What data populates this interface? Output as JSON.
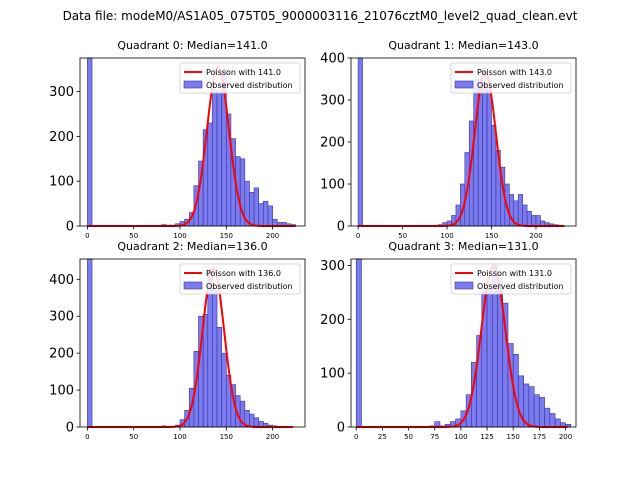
{
  "figure": {
    "suptitle": "Data file: modeM0/AS1A05_075T05_9000003116_21076cztM0_level2_quad_clean.evt"
  },
  "colors": {
    "hist_fill": "#7b7bf0",
    "hist_edge": "#3535a0",
    "poisson_line": "#ff0000",
    "axis": "#000000"
  },
  "chart_data": [
    {
      "type": "bar",
      "title": "Quadrant 0: Median=141.0",
      "xlim": [
        -8,
        235
      ],
      "ylim": [
        0,
        375
      ],
      "xticks": [
        0,
        50,
        100,
        150,
        200
      ],
      "yticks": [
        0,
        100,
        200,
        300
      ],
      "median": 141,
      "bin_width": 5,
      "legend": {
        "position": "upper right",
        "poisson_label": "Poisson with 141.0",
        "hist_label": "Observed distribution"
      },
      "bins": [
        {
          "x": 0,
          "v": 375
        },
        {
          "x": 80,
          "v": 3
        },
        {
          "x": 85,
          "v": 2
        },
        {
          "x": 90,
          "v": 2
        },
        {
          "x": 95,
          "v": 5
        },
        {
          "x": 100,
          "v": 10
        },
        {
          "x": 105,
          "v": 15
        },
        {
          "x": 110,
          "v": 30
        },
        {
          "x": 115,
          "v": 90
        },
        {
          "x": 120,
          "v": 145
        },
        {
          "x": 125,
          "v": 215
        },
        {
          "x": 130,
          "v": 230
        },
        {
          "x": 135,
          "v": 305
        },
        {
          "x": 140,
          "v": 300
        },
        {
          "x": 145,
          "v": 350
        },
        {
          "x": 150,
          "v": 250
        },
        {
          "x": 155,
          "v": 195
        },
        {
          "x": 160,
          "v": 155
        },
        {
          "x": 165,
          "v": 150
        },
        {
          "x": 170,
          "v": 100
        },
        {
          "x": 175,
          "v": 75
        },
        {
          "x": 180,
          "v": 85
        },
        {
          "x": 185,
          "v": 50
        },
        {
          "x": 190,
          "v": 55
        },
        {
          "x": 195,
          "v": 45
        },
        {
          "x": 200,
          "v": 15
        },
        {
          "x": 205,
          "v": 8
        },
        {
          "x": 210,
          "v": 8
        },
        {
          "x": 215,
          "v": 5
        },
        {
          "x": 220,
          "v": 3
        }
      ],
      "poisson_peak": 355,
      "poisson_range": [
        0,
        225
      ]
    },
    {
      "type": "bar",
      "title": "Quadrant 1: Median=143.0",
      "xlim": [
        -8,
        245
      ],
      "ylim": [
        0,
        400
      ],
      "xticks": [
        0,
        50,
        100,
        150,
        200
      ],
      "yticks": [
        0,
        100,
        200,
        300,
        400
      ],
      "median": 143,
      "bin_width": 5,
      "legend": {
        "position": "upper right",
        "poisson_label": "Poisson with 143.0",
        "hist_label": "Observed distribution"
      },
      "bins": [
        {
          "x": 0,
          "v": 400
        },
        {
          "x": 85,
          "v": 2
        },
        {
          "x": 90,
          "v": 3
        },
        {
          "x": 95,
          "v": 8
        },
        {
          "x": 100,
          "v": 12
        },
        {
          "x": 105,
          "v": 25
        },
        {
          "x": 110,
          "v": 50
        },
        {
          "x": 115,
          "v": 100
        },
        {
          "x": 120,
          "v": 175
        },
        {
          "x": 125,
          "v": 250
        },
        {
          "x": 130,
          "v": 350
        },
        {
          "x": 135,
          "v": 350
        },
        {
          "x": 140,
          "v": 375
        },
        {
          "x": 145,
          "v": 330
        },
        {
          "x": 150,
          "v": 240
        },
        {
          "x": 155,
          "v": 180
        },
        {
          "x": 160,
          "v": 140
        },
        {
          "x": 165,
          "v": 100
        },
        {
          "x": 170,
          "v": 75
        },
        {
          "x": 175,
          "v": 60
        },
        {
          "x": 180,
          "v": 75
        },
        {
          "x": 185,
          "v": 50
        },
        {
          "x": 190,
          "v": 35
        },
        {
          "x": 195,
          "v": 25
        },
        {
          "x": 200,
          "v": 25
        },
        {
          "x": 205,
          "v": 12
        },
        {
          "x": 210,
          "v": 8
        },
        {
          "x": 215,
          "v": 5
        },
        {
          "x": 220,
          "v": 3
        },
        {
          "x": 225,
          "v": 2
        }
      ],
      "poisson_peak": 365,
      "poisson_range": [
        0,
        232
      ]
    },
    {
      "type": "bar",
      "title": "Quadrant 2: Median=136.0",
      "xlim": [
        -8,
        235
      ],
      "ylim": [
        0,
        455
      ],
      "xticks": [
        0,
        50,
        100,
        150,
        200
      ],
      "yticks": [
        0,
        100,
        200,
        300,
        400
      ],
      "median": 136,
      "bin_width": 5,
      "legend": {
        "position": "upper right",
        "poisson_label": "Poisson with 136.0",
        "hist_label": "Observed distribution"
      },
      "bins": [
        {
          "x": 0,
          "v": 455
        },
        {
          "x": 80,
          "v": 3
        },
        {
          "x": 85,
          "v": 2
        },
        {
          "x": 90,
          "v": 2
        },
        {
          "x": 95,
          "v": 5
        },
        {
          "x": 100,
          "v": 20
        },
        {
          "x": 105,
          "v": 45
        },
        {
          "x": 110,
          "v": 105
        },
        {
          "x": 115,
          "v": 205
        },
        {
          "x": 120,
          "v": 300
        },
        {
          "x": 125,
          "v": 305
        },
        {
          "x": 130,
          "v": 425
        },
        {
          "x": 135,
          "v": 375
        },
        {
          "x": 140,
          "v": 270
        },
        {
          "x": 145,
          "v": 200
        },
        {
          "x": 150,
          "v": 140
        },
        {
          "x": 155,
          "v": 115
        },
        {
          "x": 160,
          "v": 85
        },
        {
          "x": 165,
          "v": 70
        },
        {
          "x": 170,
          "v": 45
        },
        {
          "x": 175,
          "v": 35
        },
        {
          "x": 180,
          "v": 25
        },
        {
          "x": 185,
          "v": 15
        },
        {
          "x": 190,
          "v": 10
        },
        {
          "x": 195,
          "v": 5
        },
        {
          "x": 200,
          "v": 3
        },
        {
          "x": 205,
          "v": 2
        }
      ],
      "poisson_peak": 430,
      "poisson_range": [
        0,
        222
      ]
    },
    {
      "type": "bar",
      "title": "Quadrant 3: Median=131.0",
      "xlim": [
        -5,
        210
      ],
      "ylim": [
        0,
        312
      ],
      "xticks": [
        0,
        25,
        50,
        75,
        100,
        125,
        150,
        175,
        200
      ],
      "yticks": [
        0,
        100,
        200,
        300
      ],
      "median": 131,
      "bin_width": 5,
      "legend": {
        "position": "upper right",
        "poisson_label": "Poisson with 131.0",
        "hist_label": "Observed distribution"
      },
      "bins": [
        {
          "x": 0,
          "v": 312
        },
        {
          "x": 70,
          "v": 2
        },
        {
          "x": 75,
          "v": 10
        },
        {
          "x": 80,
          "v": 2
        },
        {
          "x": 85,
          "v": 5
        },
        {
          "x": 90,
          "v": 10
        },
        {
          "x": 95,
          "v": 15
        },
        {
          "x": 100,
          "v": 30
        },
        {
          "x": 105,
          "v": 60
        },
        {
          "x": 110,
          "v": 120
        },
        {
          "x": 115,
          "v": 170
        },
        {
          "x": 120,
          "v": 250
        },
        {
          "x": 125,
          "v": 255
        },
        {
          "x": 130,
          "v": 300
        },
        {
          "x": 135,
          "v": 275
        },
        {
          "x": 140,
          "v": 230
        },
        {
          "x": 145,
          "v": 155
        },
        {
          "x": 150,
          "v": 135
        },
        {
          "x": 155,
          "v": 95
        },
        {
          "x": 160,
          "v": 80
        },
        {
          "x": 165,
          "v": 75
        },
        {
          "x": 170,
          "v": 60
        },
        {
          "x": 175,
          "v": 55
        },
        {
          "x": 180,
          "v": 35
        },
        {
          "x": 185,
          "v": 25
        },
        {
          "x": 190,
          "v": 15
        },
        {
          "x": 195,
          "v": 8
        },
        {
          "x": 200,
          "v": 5
        }
      ],
      "poisson_peak": 300,
      "poisson_range": [
        0,
        202
      ]
    }
  ]
}
